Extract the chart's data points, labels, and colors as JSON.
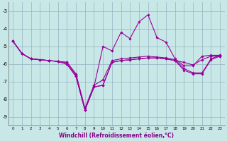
{
  "xlabel": "Windchill (Refroidissement éolien,°C)",
  "x": [
    0,
    1,
    2,
    3,
    4,
    5,
    6,
    7,
    8,
    9,
    10,
    11,
    12,
    13,
    14,
    15,
    16,
    17,
    18,
    19,
    20,
    21,
    22,
    23
  ],
  "line1": [
    -4.7,
    -5.4,
    -5.7,
    -5.75,
    -5.8,
    -5.85,
    -5.9,
    -6.6,
    -8.6,
    -7.3,
    -7.2,
    -5.9,
    -5.8,
    -5.75,
    -5.7,
    -5.65,
    -5.65,
    -5.7,
    -5.8,
    -5.9,
    -6.05,
    -5.75,
    -5.55,
    -5.55
  ],
  "line2": [
    -4.7,
    -5.4,
    -5.7,
    -5.75,
    -5.8,
    -5.85,
    -5.9,
    -6.55,
    -8.5,
    -7.2,
    -6.9,
    -5.8,
    -5.7,
    -5.65,
    -5.6,
    -5.55,
    -5.6,
    -5.65,
    -5.75,
    -6.25,
    -6.5,
    -6.5,
    -5.7,
    -5.5
  ],
  "line3": [
    -4.7,
    -5.4,
    -5.7,
    -5.75,
    -5.8,
    -5.85,
    -6.0,
    -6.7,
    -8.6,
    -7.3,
    -5.0,
    -5.25,
    -4.2,
    -4.55,
    -3.6,
    -3.2,
    -4.5,
    -4.75,
    -5.7,
    -6.1,
    -6.1,
    -5.55,
    -5.5,
    -5.5
  ],
  "line4": [
    -4.7,
    -5.4,
    -5.7,
    -5.75,
    -5.8,
    -5.85,
    -6.0,
    -6.7,
    -8.6,
    -7.3,
    -7.2,
    -5.9,
    -5.8,
    -5.75,
    -5.7,
    -5.65,
    -5.65,
    -5.7,
    -5.8,
    -6.35,
    -6.55,
    -6.55,
    -5.75,
    -5.55
  ],
  "line_color": "#990099",
  "bg_color": "#c8e8e8",
  "grid_color": "#9ab0c0",
  "ylim": [
    -9.5,
    -2.5
  ],
  "yticks": [
    -9,
    -8,
    -7,
    -6,
    -5,
    -4,
    -3
  ],
  "xticks": [
    0,
    1,
    2,
    3,
    4,
    5,
    6,
    7,
    8,
    9,
    10,
    11,
    12,
    13,
    14,
    15,
    16,
    17,
    18,
    19,
    20,
    21,
    22,
    23
  ]
}
